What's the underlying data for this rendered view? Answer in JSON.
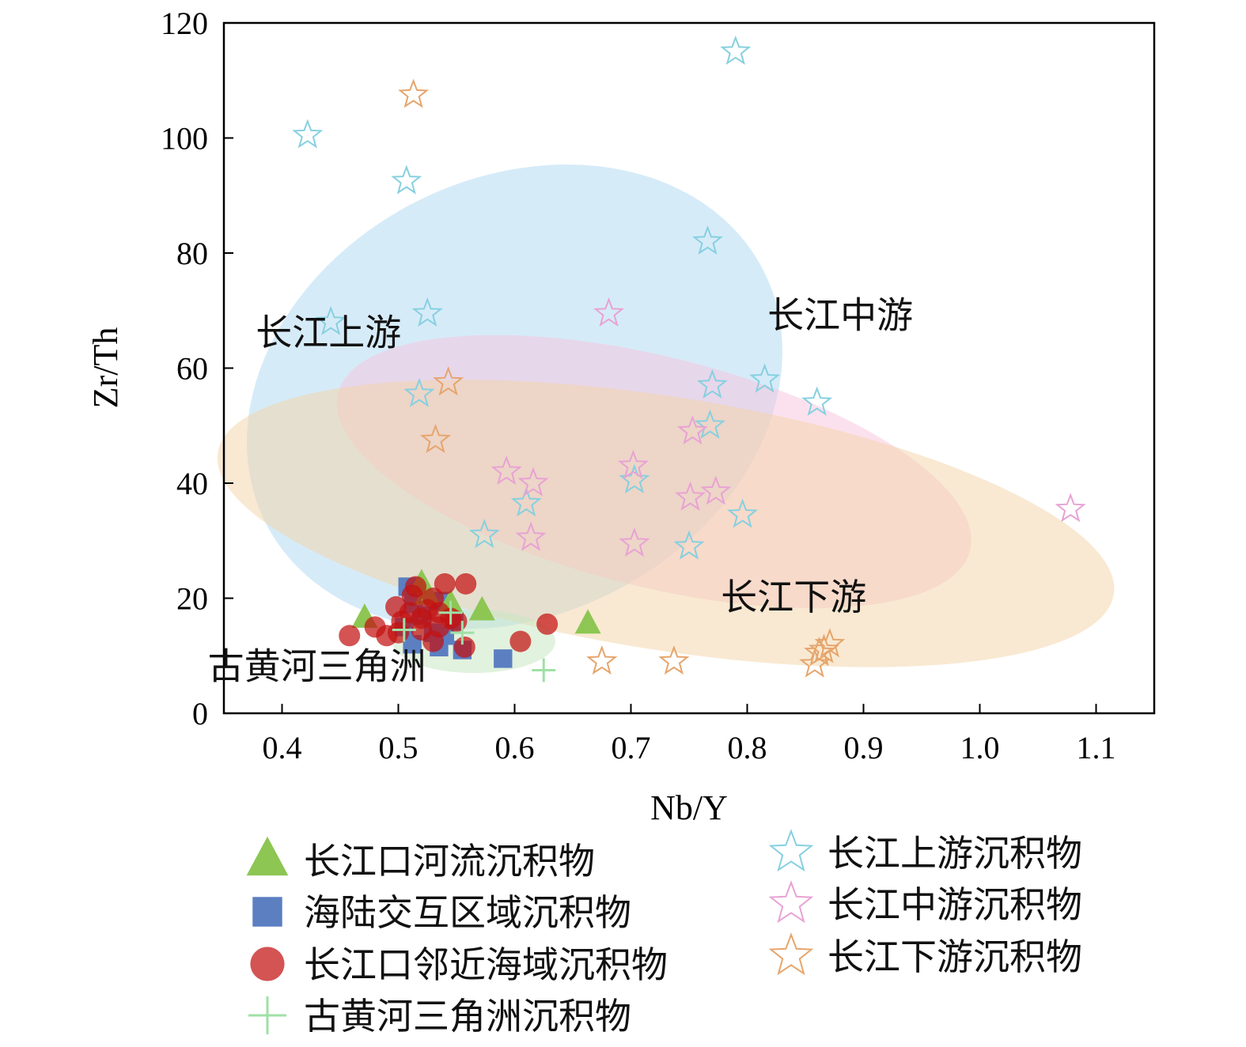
{
  "chart_data": {
    "type": "scatter",
    "xlabel": "Nb/Y",
    "ylabel": "Zr/Th",
    "xlim": [
      0.35,
      1.15
    ],
    "ylim": [
      0,
      120
    ],
    "x_ticks": [
      "0.4",
      "0.5",
      "0.6",
      "0.7",
      "0.8",
      "0.9",
      "1.0",
      "1.1"
    ],
    "y_ticks": [
      "0",
      "20",
      "40",
      "60",
      "80",
      "100",
      "120"
    ],
    "regions": [
      {
        "name": "长江上游",
        "color": "#aed8f2",
        "opacity": 0.5,
        "cx": 0.6,
        "cy": 55,
        "rx": 0.24,
        "ry": 38,
        "angle": -27,
        "label_at": [
          0.44,
          64
        ]
      },
      {
        "name": "长江中游",
        "color": "#f7c3de",
        "opacity": 0.5,
        "cx": 0.72,
        "cy": 42,
        "rx": 0.28,
        "ry": 20,
        "angle": 14,
        "label_at": [
          0.88,
          67
        ]
      },
      {
        "name": "长江下游",
        "color": "#f4d3a6",
        "opacity": 0.5,
        "cx": 0.73,
        "cy": 33,
        "rx": 0.39,
        "ry": 22,
        "angle": 9,
        "label_at": [
          0.84,
          18
        ]
      },
      {
        "name": "古黄河三角洲",
        "color": "#c8e8c2",
        "opacity": 0.55,
        "cx": 0.565,
        "cy": 12.5,
        "rx": 0.07,
        "ry": 5.5,
        "angle": 0,
        "label_at": [
          0.43,
          6
        ]
      }
    ],
    "series": [
      {
        "name": "长江口河流沉积物",
        "marker": "triangle",
        "color": "#8dc653",
        "points": [
          [
            0.471,
            16.5
          ],
          [
            0.52,
            22.5
          ],
          [
            0.525,
            20.5
          ],
          [
            0.545,
            19.0
          ],
          [
            0.572,
            17.8
          ],
          [
            0.663,
            15.5
          ]
        ]
      },
      {
        "name": "海陆交互区域沉积物",
        "marker": "square",
        "color": "#5b7fc1",
        "points": [
          [
            0.508,
            22.0
          ],
          [
            0.513,
            19.0
          ],
          [
            0.52,
            17.0
          ],
          [
            0.505,
            15.0
          ],
          [
            0.512,
            12.0
          ],
          [
            0.53,
            14.0
          ],
          [
            0.535,
            11.5
          ],
          [
            0.54,
            13.5
          ],
          [
            0.548,
            16.0
          ],
          [
            0.555,
            11.0
          ],
          [
            0.59,
            9.5
          ],
          [
            0.536,
            19.5
          ]
        ]
      },
      {
        "name": "长江口邻近海域沉积物",
        "marker": "circle",
        "color": "#c41010",
        "points": [
          [
            0.458,
            13.5
          ],
          [
            0.48,
            15.0
          ],
          [
            0.49,
            13.5
          ],
          [
            0.498,
            18.5
          ],
          [
            0.503,
            16.0
          ],
          [
            0.51,
            17.5
          ],
          [
            0.515,
            22.0
          ],
          [
            0.52,
            14.5
          ],
          [
            0.525,
            18.0
          ],
          [
            0.53,
            20.0
          ],
          [
            0.535,
            15.0
          ],
          [
            0.54,
            22.5
          ],
          [
            0.545,
            16.5
          ],
          [
            0.55,
            16.0
          ],
          [
            0.557,
            11.5
          ],
          [
            0.558,
            22.5
          ],
          [
            0.605,
            12.5
          ],
          [
            0.628,
            15.5
          ],
          [
            0.53,
            12.5
          ],
          [
            0.512,
            20.5
          ],
          [
            0.52,
            16.5
          ],
          [
            0.5,
            14.0
          ],
          [
            0.535,
            17.5
          ]
        ]
      },
      {
        "name": "古黄河三角洲沉积物",
        "marker": "plus",
        "color": "#9fe0a6",
        "points": [
          [
            0.505,
            14.5
          ],
          [
            0.545,
            17.5
          ],
          [
            0.555,
            14.0
          ],
          [
            0.625,
            7.5
          ]
        ]
      },
      {
        "name": "长江上游沉积物",
        "marker": "star",
        "color": "#86d0e0",
        "points": [
          [
            0.422,
            100.5
          ],
          [
            0.442,
            68.0
          ],
          [
            0.507,
            92.5
          ],
          [
            0.518,
            55.5
          ],
          [
            0.525,
            69.5
          ],
          [
            0.574,
            31.0
          ],
          [
            0.61,
            36.5
          ],
          [
            0.703,
            40.5
          ],
          [
            0.75,
            29.0
          ],
          [
            0.766,
            82.0
          ],
          [
            0.768,
            50.0
          ],
          [
            0.77,
            57.0
          ],
          [
            0.79,
            115.0
          ],
          [
            0.796,
            34.5
          ],
          [
            0.815,
            58.0
          ],
          [
            0.86,
            54.0
          ]
        ]
      },
      {
        "name": "长江中游沉积物",
        "marker": "star",
        "color": "#e8a2d4",
        "points": [
          [
            0.593,
            42.0
          ],
          [
            0.614,
            30.5
          ],
          [
            0.616,
            40.0
          ],
          [
            0.681,
            69.5
          ],
          [
            0.702,
            43.0
          ],
          [
            0.703,
            29.5
          ],
          [
            0.751,
            37.5
          ],
          [
            0.753,
            49.0
          ],
          [
            0.773,
            38.5
          ],
          [
            1.078,
            35.5
          ]
        ]
      },
      {
        "name": "长江下游沉积物",
        "marker": "star",
        "color": "#e6a56c",
        "points": [
          [
            0.513,
            107.5
          ],
          [
            0.532,
            47.5
          ],
          [
            0.543,
            57.5
          ],
          [
            0.675,
            9.0
          ],
          [
            0.737,
            9.0
          ],
          [
            0.858,
            8.5
          ],
          [
            0.862,
            10.5
          ],
          [
            0.866,
            11.0
          ],
          [
            0.871,
            12.0
          ]
        ]
      }
    ]
  }
}
